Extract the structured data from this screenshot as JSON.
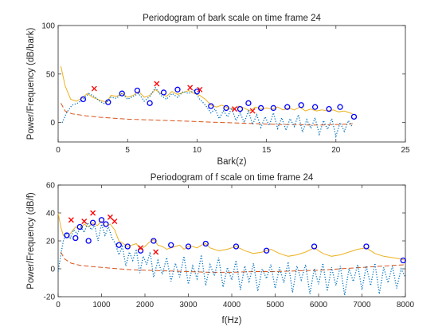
{
  "chart_data": [
    {
      "type": "line",
      "title": "Periodogram of bark scale on time frame 24",
      "xlabel": "Bark(z)",
      "ylabel": "Power/Frequency (dB/bark)",
      "xlim": [
        0,
        25
      ],
      "ylim": [
        -20,
        100
      ],
      "xticks": [
        0,
        5,
        10,
        15,
        20,
        25
      ],
      "yticks": [
        0,
        50,
        100
      ],
      "xtick_labels": [
        "0",
        "5",
        "10",
        "15",
        "20",
        "25"
      ],
      "ytick_labels": [
        "0",
        "50",
        "100"
      ],
      "grid": false,
      "series": [
        {
          "style": "solid",
          "color": "#EDB120",
          "x": [
            0.2,
            0.5,
            0.9,
            1.3,
            1.7,
            2.1,
            2.5,
            3.0,
            3.5,
            3.8,
            4.2,
            4.6,
            5.0,
            5.4,
            5.8,
            6.2,
            6.6,
            7.0,
            7.4,
            7.8,
            8.2,
            8.6,
            9.0,
            9.4,
            9.8,
            10.2,
            10.6,
            11.0,
            11.4,
            11.8,
            12.2,
            12.6,
            13.0,
            13.4,
            13.8,
            14.2,
            14.6,
            15.0,
            15.4,
            15.8,
            16.2,
            16.6,
            17.0,
            17.4,
            17.8,
            18.2,
            18.6,
            19.0,
            19.4,
            19.8,
            20.2,
            20.6,
            21.0,
            21.2
          ],
          "y": [
            58,
            38,
            24,
            22,
            25,
            30,
            26,
            23,
            21,
            28,
            27,
            30,
            26,
            28,
            32,
            26,
            28,
            34,
            30,
            27,
            32,
            29,
            31,
            33,
            30,
            28,
            24,
            18,
            16,
            18,
            15,
            14,
            17,
            15,
            12,
            16,
            14,
            15,
            14,
            16,
            13,
            15,
            13,
            16,
            12,
            14,
            12,
            13,
            12,
            13,
            11,
            12,
            10,
            9
          ]
        },
        {
          "style": "dashed",
          "color": "#D95319",
          "x": [
            0.2,
            0.5,
            1.0,
            1.5,
            2.0,
            3.0,
            4.0,
            5.0,
            6.0,
            7.0,
            8.0,
            9.0,
            10.0,
            11.0,
            12.0,
            13.0,
            14.0,
            15.0,
            16.0,
            17.0,
            18.0,
            19.0,
            20.0,
            21.0,
            21.2
          ],
          "y": [
            20,
            12,
            9,
            8,
            7,
            5.5,
            4.5,
            3.5,
            3,
            2.5,
            2,
            1.5,
            1,
            0.5,
            0,
            -0.5,
            -1,
            -1.5,
            -2,
            -2,
            -2.5,
            -2.5,
            -2,
            -1.5,
            -1
          ]
        },
        {
          "style": "dotted",
          "color": "#0072BD",
          "x": [
            0.3,
            0.6,
            1.0,
            1.4,
            1.8,
            2.2,
            2.6,
            3.0,
            3.4,
            3.8,
            4.2,
            4.6,
            5.0,
            5.4,
            5.8,
            6.2,
            6.6,
            7.0,
            7.4,
            7.8,
            8.2,
            8.6,
            9.0,
            9.4,
            9.8,
            10.2,
            10.6,
            11.0,
            11.3,
            11.6,
            11.9,
            12.2,
            12.5,
            12.8,
            13.1,
            13.4,
            13.7,
            14.0,
            14.3,
            14.6,
            14.9,
            15.2,
            15.5,
            15.8,
            16.1,
            16.4,
            16.7,
            17.0,
            17.3,
            17.6,
            17.9,
            18.2,
            18.5,
            18.8,
            19.1,
            19.4,
            19.7,
            20.0,
            20.3,
            20.6,
            20.9,
            21.2
          ],
          "y": [
            0,
            10,
            18,
            20,
            24,
            30,
            27,
            22,
            19,
            26,
            25,
            30,
            24,
            27,
            30,
            22,
            27,
            36,
            28,
            24,
            30,
            26,
            32,
            30,
            33,
            24,
            18,
            10,
            14,
            4,
            12,
            6,
            15,
            2,
            10,
            0,
            12,
            -2,
            8,
            -5,
            6,
            -3,
            10,
            -6,
            5,
            -8,
            4,
            -4,
            8,
            -10,
            3,
            -6,
            5,
            -12,
            2,
            -7,
            4,
            -14,
            0,
            -9,
            2,
            -5
          ]
        },
        {
          "style": "markers-o",
          "color": "#0000FF",
          "x": [
            1.8,
            3.6,
            4.6,
            5.7,
            6.6,
            7.6,
            8.6,
            10.0,
            11.0,
            12.1,
            13.1,
            13.7,
            14.6,
            15.5,
            16.5,
            17.5,
            18.5,
            19.5,
            20.3,
            21.3
          ],
          "y": [
            24,
            21,
            30,
            33,
            20,
            31,
            34,
            32,
            17,
            15,
            14,
            20,
            15,
            15,
            16,
            18,
            16,
            14,
            16,
            6
          ]
        },
        {
          "style": "markers-x",
          "color": "#FF0000",
          "x": [
            2.6,
            7.1,
            9.5,
            10.2,
            12.7,
            14.0
          ],
          "y": [
            35,
            40,
            36,
            34,
            14,
            12
          ]
        }
      ]
    },
    {
      "type": "line",
      "title": "Periodogram of f scale on time frame 24",
      "xlabel": "f(Hz)",
      "ylabel": "Power/Frequency (dB/f)",
      "xlim": [
        0,
        8000
      ],
      "ylim": [
        -20,
        60
      ],
      "xticks": [
        0,
        1000,
        2000,
        3000,
        4000,
        5000,
        6000,
        7000,
        8000
      ],
      "yticks": [
        -20,
        0,
        20,
        40,
        60
      ],
      "xtick_labels": [
        "0",
        "1000",
        "2000",
        "3000",
        "4000",
        "5000",
        "6000",
        "7000",
        "8000"
      ],
      "ytick_labels": [
        "-20",
        "0",
        "20",
        "40",
        "60"
      ],
      "grid": false,
      "series": [
        {
          "style": "solid",
          "color": "#EDB120",
          "x": [
            0,
            60,
            120,
            200,
            300,
            400,
            500,
            600,
            700,
            800,
            900,
            1000,
            1100,
            1200,
            1300,
            1400,
            1500,
            1600,
            1700,
            1800,
            1900,
            2000,
            2100,
            2200,
            2300,
            2400,
            2500,
            2600,
            2700,
            2800,
            2900,
            3000,
            3100,
            3200,
            3300,
            3400,
            3500,
            3700,
            3900,
            4100,
            4300,
            4500,
            4700,
            4900,
            5100,
            5300,
            5500,
            5700,
            5900,
            6100,
            6300,
            6500,
            6700,
            6900,
            7100,
            7300,
            7500,
            7700,
            7900,
            8000
          ],
          "y": [
            40,
            30,
            24,
            22,
            26,
            30,
            28,
            32,
            30,
            33,
            31,
            34,
            30,
            32,
            28,
            20,
            18,
            16,
            17,
            18,
            14,
            16,
            19,
            21,
            17,
            16,
            14,
            15,
            16,
            17,
            14,
            16,
            16,
            15,
            17,
            18,
            15,
            13,
            14,
            16,
            13,
            11,
            12,
            14,
            11,
            9,
            10,
            12,
            15,
            11,
            9,
            10,
            12,
            14,
            15,
            11,
            9,
            8,
            7,
            6
          ]
        },
        {
          "style": "dashed",
          "color": "#D95319",
          "x": [
            60,
            150,
            300,
            500,
            800,
            1200,
            1600,
            2000,
            2500,
            3000,
            3500,
            4000,
            4500,
            5000,
            5500,
            6000,
            6500,
            7000,
            7500,
            8000
          ],
          "y": [
            12,
            7,
            4,
            2.5,
            1.5,
            0.5,
            -0.5,
            -1,
            -1.5,
            -2,
            -2.5,
            -2.5,
            -2,
            -2,
            -1.5,
            -1,
            0,
            1,
            2,
            3
          ]
        },
        {
          "style": "dotted",
          "color": "#0072BD",
          "x": [
            0,
            60,
            120,
            200,
            280,
            360,
            440,
            520,
            600,
            680,
            760,
            840,
            920,
            1000,
            1080,
            1160,
            1240,
            1320,
            1400,
            1480,
            1560,
            1640,
            1720,
            1800,
            1880,
            1960,
            2040,
            2120,
            2200,
            2300,
            2400,
            2500,
            2600,
            2700,
            2800,
            2900,
            3000,
            3100,
            3200,
            3300,
            3400,
            3500,
            3600,
            3700,
            3800,
            3900,
            4000,
            4100,
            4200,
            4300,
            4400,
            4500,
            4600,
            4700,
            4800,
            4900,
            5000,
            5100,
            5200,
            5300,
            5400,
            5500,
            5600,
            5700,
            5800,
            5900,
            6000,
            6100,
            6200,
            6300,
            6400,
            6500,
            6600,
            6700,
            6800,
            6900,
            7000,
            7100,
            7200,
            7300,
            7400,
            7500,
            7600,
            7700,
            7800,
            7900,
            8000
          ],
          "y": [
            -2,
            10,
            20,
            26,
            22,
            28,
            25,
            30,
            26,
            33,
            28,
            31,
            20,
            32,
            24,
            30,
            22,
            18,
            10,
            16,
            2,
            12,
            6,
            14,
            -3,
            9,
            3,
            12,
            -6,
            6,
            -4,
            8,
            -9,
            4,
            -6,
            9,
            -11,
            2,
            -7,
            10,
            -12,
            3,
            -5,
            8,
            -13,
            1,
            -8,
            6,
            -15,
            2,
            -9,
            4,
            -16,
            0,
            -7,
            3,
            -14,
            1,
            -10,
            5,
            -17,
            2,
            -8,
            3,
            -18,
            0,
            -11,
            4,
            -16,
            1,
            -12,
            2,
            -19,
            0,
            -9,
            3,
            -15,
            2,
            -12,
            4,
            -18,
            1,
            -10,
            2,
            -14,
            0,
            -6
          ]
        },
        {
          "style": "markers-o",
          "color": "#0000FF",
          "x": [
            200,
            400,
            500,
            700,
            800,
            1000,
            1100,
            1400,
            1600,
            1900,
            2200,
            2600,
            3000,
            3400,
            4100,
            4800,
            5900,
            7100,
            7950
          ],
          "y": [
            24,
            22,
            30,
            20,
            33,
            35,
            32,
            17,
            16,
            13,
            20,
            17,
            16,
            18,
            16,
            13,
            16,
            16,
            6
          ]
        },
        {
          "style": "markers-x",
          "color": "#FF0000",
          "x": [
            300,
            600,
            800,
            1200,
            1300,
            1900,
            2250
          ],
          "y": [
            35,
            34,
            40,
            37,
            34,
            15,
            12
          ]
        }
      ]
    }
  ]
}
